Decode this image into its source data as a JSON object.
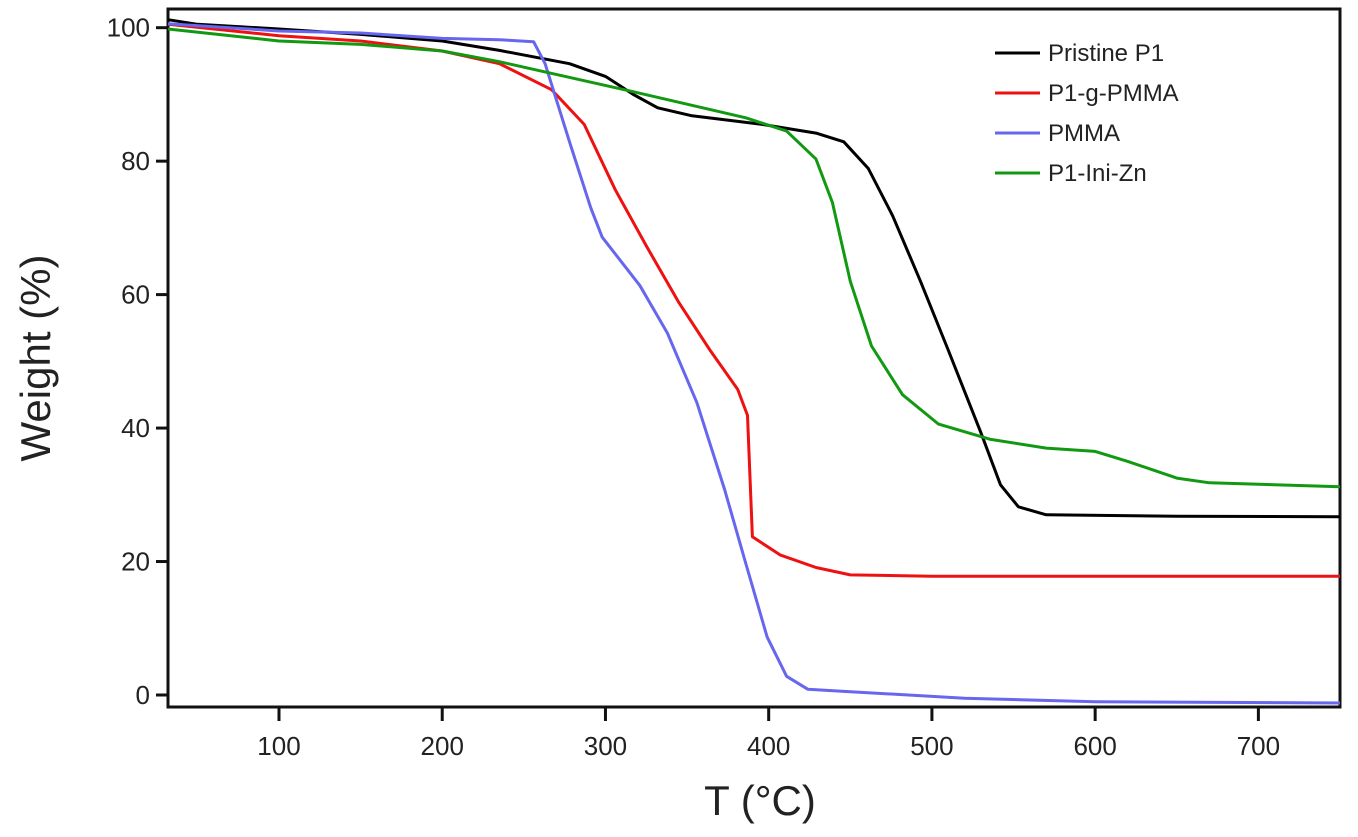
{
  "chart_data": {
    "type": "line",
    "title": "",
    "xlabel": "T (°C)",
    "ylabel": "Weight (%)",
    "xlim": [
      32,
      750
    ],
    "ylim": [
      -1.8,
      102.8
    ],
    "xticks": [
      100,
      200,
      300,
      400,
      500,
      600,
      700
    ],
    "yticks": [
      0,
      20,
      40,
      60,
      80,
      100
    ],
    "grid": false,
    "legend_position": "top-right",
    "series": [
      {
        "name": "Pristine P1",
        "color": "#000000",
        "x": [
          32,
          50,
          100,
          150,
          200,
          235,
          278,
          300,
          317,
          332,
          353,
          396,
          429,
          446,
          461,
          476,
          493,
          510,
          530,
          542,
          553,
          570,
          650,
          750
        ],
        "y": [
          101.2,
          100.5,
          99.8,
          99,
          98,
          96.6,
          94.6,
          92.7,
          90,
          88,
          86.8,
          85.5,
          84.2,
          82.9,
          78.9,
          71.8,
          62,
          51.7,
          39.3,
          31.5,
          28.2,
          27,
          26.8,
          26.7
        ]
      },
      {
        "name": "P1-g-PMMA",
        "color": "#ee1111",
        "x": [
          32,
          100,
          150,
          200,
          235,
          267,
          287,
          306,
          325,
          345,
          364,
          381,
          387,
          390,
          407,
          429,
          450,
          500,
          750
        ],
        "y": [
          100.5,
          98.8,
          98,
          96.5,
          94.6,
          90.7,
          85.5,
          75.7,
          67.3,
          58.8,
          51.7,
          45.8,
          41.9,
          23.7,
          21,
          19.1,
          18,
          17.8,
          17.8
        ]
      },
      {
        "name": "PMMA",
        "color": "#6666ee",
        "x": [
          32,
          100,
          150,
          200,
          235,
          256,
          263,
          278,
          291,
          298,
          321,
          338,
          356,
          373,
          386,
          399,
          411,
          424,
          450,
          520,
          600,
          750
        ],
        "y": [
          100.6,
          99.5,
          99.2,
          98.4,
          98.2,
          97.9,
          94.6,
          82.9,
          73,
          68.6,
          61.4,
          54.2,
          43.8,
          30.8,
          19.7,
          8.7,
          2.8,
          0.85,
          0.5,
          -0.5,
          -1,
          -1.2
        ]
      },
      {
        "name": "P1-Ini-Zn",
        "color": "#119911",
        "x": [
          32,
          100,
          150,
          200,
          235,
          317,
          386,
          411,
          429,
          439,
          450,
          463,
          482,
          504,
          536,
          570,
          600,
          620,
          650,
          670,
          750
        ],
        "y": [
          99.8,
          98,
          97.5,
          96.5,
          94.9,
          90.4,
          86.5,
          84.5,
          80.3,
          73.8,
          62,
          52.3,
          45,
          40.6,
          38.3,
          37,
          36.5,
          35,
          32.5,
          31.8,
          31.2
        ]
      }
    ]
  }
}
